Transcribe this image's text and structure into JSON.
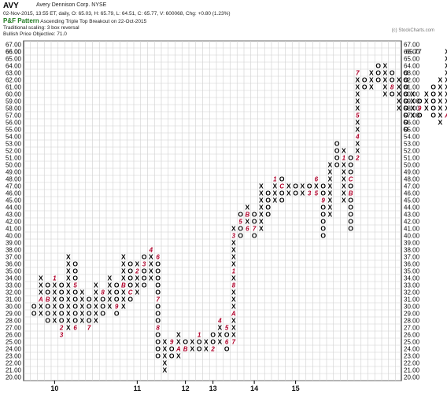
{
  "header": {
    "ticker": "AVY",
    "company": "Avery Dennison Corp.  NYSE",
    "quote_line": "02-Nov-2015, 13:55 ET, daily, O: 65.03, H: 65.79, L: 64.51, C: 65.77, V: 600068, Chg: +0.80 (1.23%)",
    "pattern_label": "P&F Pattern",
    "pattern_text": "Ascending Triple Top Breakout on 22-Oct-2015",
    "scaling_text": "Traditional scaling: 3 box reversal",
    "objective_text": "Bullish Price Objective: 71.0",
    "copyright": "(c) StockCharts.com"
  },
  "chart_data": {
    "type": "point-and-figure",
    "box_size": 1,
    "reversal": 3,
    "ylim": [
      20,
      67
    ],
    "y_tick_labels": [
      "20.00",
      "21.00",
      "22.00",
      "23.00",
      "24.00",
      "25.00",
      "26.00",
      "27.00",
      "28.00",
      "29.00",
      "30.00",
      "31.00",
      "32.00",
      "33.00",
      "34.00",
      "35.00",
      "36.00",
      "37.00",
      "38.00",
      "39.00",
      "40.00",
      "41.00",
      "42.00",
      "43.00",
      "44.00",
      "45.00",
      "46.00",
      "47.00",
      "48.00",
      "49.00",
      "50.00",
      "51.00",
      "52.00",
      "53.00",
      "54.00",
      "55.00",
      "56.00",
      "57.00",
      "58.00",
      "59.00",
      "60.00",
      "61.00",
      "62.00",
      "63.00",
      "64.00",
      "65.00",
      "66.00",
      "67.00"
    ],
    "y_tick_values": [
      20,
      21,
      22,
      23,
      24,
      25,
      26,
      27,
      28,
      29,
      30,
      31,
      32,
      33,
      34,
      35,
      36,
      37,
      38,
      39,
      40,
      41,
      42,
      43,
      44,
      45,
      46,
      47,
      48,
      49,
      50,
      51,
      52,
      53,
      54,
      55,
      56,
      57,
      58,
      59,
      60,
      61,
      62,
      63,
      64,
      65,
      66,
      67
    ],
    "current_price": 65.77,
    "current_price_label": "65.77",
    "x_labels": [
      {
        "label": "10",
        "col": 3
      },
      {
        "label": "11",
        "col": 15
      },
      {
        "label": "12",
        "col": 22
      },
      {
        "label": "13",
        "col": 26
      },
      {
        "label": "14",
        "col": 32
      },
      {
        "label": "15",
        "col": 38
      }
    ],
    "columns": [
      {
        "type": "O",
        "top": 30,
        "bottom": 29
      },
      {
        "type": "X",
        "top": 34,
        "bottom": 29,
        "marks": {
          "31": "A"
        }
      },
      {
        "type": "O",
        "top": 33,
        "bottom": 28,
        "marks": {
          "31": "B"
        }
      },
      {
        "type": "X",
        "top": 34,
        "bottom": 28,
        "marks": {
          "34": "1"
        }
      },
      {
        "type": "O",
        "top": 33,
        "bottom": 26,
        "marks": {
          "27": "2",
          "26": "3"
        }
      },
      {
        "type": "X",
        "top": 37,
        "bottom": 27
      },
      {
        "type": "O",
        "top": 36,
        "bottom": 27,
        "marks": {
          "33": "5",
          "27": "6"
        }
      },
      {
        "type": "X",
        "top": 32,
        "bottom": 28
      },
      {
        "type": "O",
        "top": 31,
        "bottom": 27,
        "marks": {
          "27": "7"
        }
      },
      {
        "type": "X",
        "top": 33,
        "bottom": 28
      },
      {
        "type": "O",
        "top": 32,
        "bottom": 29,
        "marks": {
          "32": "8"
        }
      },
      {
        "type": "X",
        "top": 34,
        "bottom": 30
      },
      {
        "type": "O",
        "top": 33,
        "bottom": 29,
        "marks": {
          "30": "9"
        }
      },
      {
        "type": "X",
        "top": 37,
        "bottom": 30,
        "marks": {
          "33": "B"
        }
      },
      {
        "type": "O",
        "top": 36,
        "bottom": 31,
        "marks": {
          "32": "C"
        }
      },
      {
        "type": "X",
        "top": 36,
        "bottom": 32,
        "marks": {
          "35": "2"
        }
      },
      {
        "type": "O",
        "top": 37,
        "bottom": 33,
        "marks": {
          "36": "3"
        }
      },
      {
        "type": "X",
        "top": 38,
        "bottom": 34,
        "marks": {
          "38": "4"
        }
      },
      {
        "type": "O",
        "top": 37,
        "bottom": 23,
        "marks": {
          "37": "6",
          "31": "7",
          "27": "8"
        }
      },
      {
        "type": "X",
        "top": 25,
        "bottom": 21
      },
      {
        "type": "O",
        "top": 25,
        "bottom": 23,
        "marks": {
          "25": "9"
        }
      },
      {
        "type": "X",
        "top": 26,
        "bottom": 23,
        "marks": {
          "24": "A"
        }
      },
      {
        "type": "O",
        "top": 25,
        "bottom": 24,
        "marks": {
          "24": "B"
        }
      },
      {
        "type": "X",
        "top": 25,
        "bottom": 24
      },
      {
        "type": "O",
        "top": 26,
        "bottom": 24,
        "marks": {
          "26": "1"
        }
      },
      {
        "type": "X",
        "top": 25,
        "bottom": 24
      },
      {
        "type": "O",
        "top": 26,
        "bottom": 24,
        "marks": {
          "24": "2"
        }
      },
      {
        "type": "X",
        "top": 28,
        "bottom": 25,
        "marks": {
          "28": "4"
        }
      },
      {
        "type": "O",
        "top": 27,
        "bottom": 24,
        "marks": {
          "27": "5",
          "25": "6"
        }
      },
      {
        "type": "X",
        "top": 41,
        "bottom": 25,
        "marks": {
          "40": "3",
          "35": "1",
          "33": "8",
          "29": "A",
          "25": "7"
        }
      },
      {
        "type": "O",
        "top": 43,
        "bottom": 40,
        "marks": {
          "42": "5"
        }
      },
      {
        "type": "X",
        "top": 44,
        "bottom": 41,
        "marks": {
          "41": "6",
          "43": "B"
        }
      },
      {
        "type": "O",
        "top": 43,
        "bottom": 40,
        "marks": {
          "41": "7"
        }
      },
      {
        "type": "X",
        "top": 47,
        "bottom": 41
      },
      {
        "type": "O",
        "top": 46,
        "bottom": 43,
        "marks": {
          "41": "A"
        }
      },
      {
        "type": "X",
        "top": 48,
        "bottom": 45,
        "marks": {
          "48": "1"
        }
      },
      {
        "type": "O",
        "top": 48,
        "bottom": 45,
        "marks": {
          "47": "C"
        }
      },
      {
        "type": "X",
        "top": 47,
        "bottom": 46
      },
      {
        "type": "O",
        "top": 47,
        "bottom": 46
      },
      {
        "type": "X",
        "top": 47,
        "bottom": 46
      },
      {
        "type": "O",
        "top": 47,
        "bottom": 46,
        "marks": {
          "46": "3"
        }
      },
      {
        "type": "X",
        "top": 48,
        "bottom": 46,
        "marks": {
          "46": "5",
          "48": "6"
        }
      },
      {
        "type": "O",
        "top": 47,
        "bottom": 40,
        "marks": {
          "45": "9"
        }
      },
      {
        "type": "X",
        "top": 50,
        "bottom": 43
      },
      {
        "type": "O",
        "top": 53,
        "bottom": 50
      },
      {
        "type": "X",
        "top": 52,
        "bottom": 45,
        "marks": {
          "51": "1"
        }
      },
      {
        "type": "O",
        "top": 51,
        "bottom": 41,
        "marks": {
          "48": "C",
          "46": "B"
        }
      },
      {
        "type": "X",
        "top": 63,
        "bottom": 51,
        "marks": {
          "51": "2",
          "54": "4",
          "57": "5",
          "63": "7"
        }
      },
      {
        "type": "O",
        "top": 62,
        "bottom": 61
      },
      {
        "type": "X",
        "top": 63,
        "bottom": 61
      },
      {
        "type": "O",
        "top": 64,
        "bottom": 62
      },
      {
        "type": "X",
        "top": 64,
        "bottom": 60
      },
      {
        "type": "O",
        "top": 63,
        "bottom": 60,
        "marks": {
          "61": "8"
        }
      },
      {
        "type": "X",
        "top": 62,
        "bottom": 58
      },
      {
        "type": "O",
        "top": 63,
        "bottom": 55
      },
      {
        "type": "X",
        "top": 60,
        "bottom": 57
      },
      {
        "type": "O",
        "top": 59,
        "bottom": 57,
        "marks": {
          "58": "9"
        }
      },
      {
        "type": "X",
        "top": 60,
        "bottom": 58
      },
      {
        "type": "O",
        "top": 61,
        "bottom": 57
      },
      {
        "type": "X",
        "top": 62,
        "bottom": 56
      },
      {
        "type": "X",
        "top": 66,
        "bottom": 57,
        "marks": {
          "57": "A"
        }
      }
    ]
  }
}
